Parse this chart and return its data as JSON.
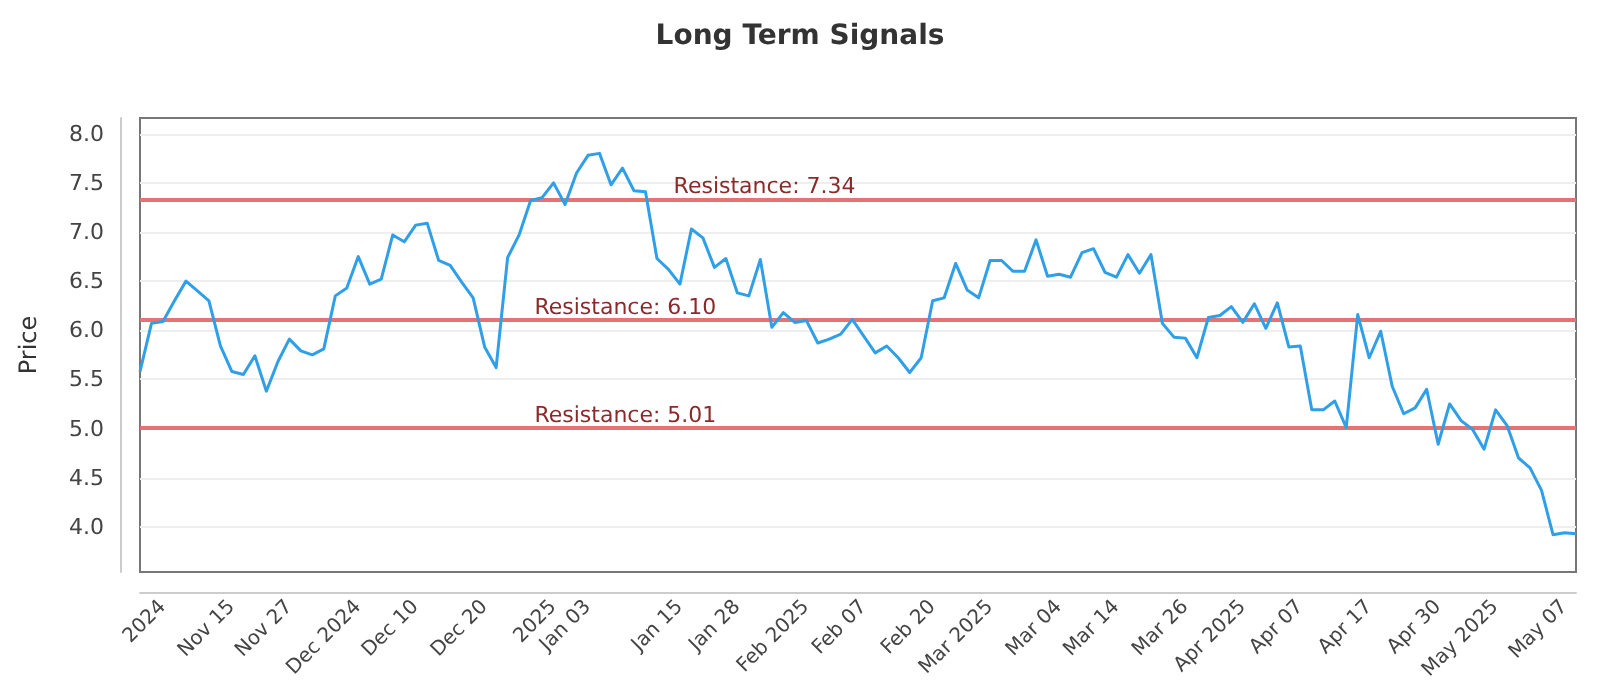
{
  "chart_data": {
    "type": "line",
    "title": "Long Term Signals",
    "ylabel": "Price",
    "categories": [
      null,
      null,
      "2024",
      null,
      null,
      null,
      null,
      null,
      "Nov 15",
      null,
      null,
      null,
      null,
      "Nov 27",
      null,
      null,
      null,
      null,
      null,
      "Dec 2024",
      null,
      null,
      null,
      null,
      "Dec 10",
      null,
      null,
      null,
      null,
      null,
      "Dec 20",
      null,
      null,
      null,
      null,
      null,
      "2025",
      null,
      null,
      "Jan 03",
      null,
      null,
      null,
      null,
      null,
      null,
      null,
      "Jan 15",
      null,
      null,
      null,
      null,
      "Jan 28",
      null,
      null,
      null,
      null,
      null,
      "Feb 2025",
      null,
      null,
      null,
      null,
      "Feb 07",
      null,
      null,
      null,
      null,
      null,
      "Feb 20",
      null,
      null,
      null,
      null,
      "Mar 2025",
      null,
      null,
      null,
      null,
      null,
      "Mar 04",
      null,
      null,
      null,
      null,
      "Mar 14",
      null,
      null,
      null,
      null,
      null,
      "Mar 26",
      null,
      null,
      null,
      null,
      "Apr 2025",
      null,
      null,
      null,
      null,
      "Apr 07",
      null,
      null,
      null,
      null,
      null,
      "Apr 17",
      null,
      null,
      null,
      null,
      null,
      "Apr 30",
      null,
      null,
      null,
      null,
      "May 2025",
      null,
      null,
      null,
      null,
      null,
      "May 07",
      null
    ],
    "series": [
      {
        "color": "#2f9fe8",
        "values": [
          5.58,
          6.07,
          6.09,
          6.3,
          6.5,
          6.4,
          6.3,
          5.84,
          5.58,
          5.55,
          5.74,
          5.38,
          5.68,
          5.91,
          5.79,
          5.75,
          5.81,
          6.35,
          6.43,
          6.75,
          6.47,
          6.52,
          6.97,
          6.9,
          7.07,
          7.09,
          6.71,
          6.66,
          6.49,
          6.33,
          5.83,
          5.62,
          6.74,
          6.97,
          7.32,
          7.35,
          7.5,
          7.28,
          7.6,
          7.78,
          7.8,
          7.48,
          7.65,
          7.42,
          7.41,
          6.73,
          6.62,
          6.47,
          7.03,
          6.94,
          6.64,
          6.73,
          6.38,
          6.35,
          6.72,
          6.03,
          6.18,
          6.08,
          6.1,
          5.87,
          5.91,
          5.96,
          6.11,
          5.94,
          5.77,
          5.84,
          5.72,
          5.57,
          5.72,
          6.3,
          6.33,
          6.68,
          6.41,
          6.33,
          6.71,
          6.71,
          6.6,
          6.6,
          6.92,
          6.55,
          6.57,
          6.54,
          6.79,
          6.83,
          6.59,
          6.54,
          6.77,
          6.58,
          6.77,
          6.07,
          5.93,
          5.92,
          5.72,
          6.13,
          6.15,
          6.24,
          6.08,
          6.27,
          6.02,
          6.28,
          5.83,
          5.84,
          5.19,
          5.19,
          5.28,
          5.01,
          6.16,
          5.72,
          5.99,
          5.43,
          5.15,
          5.21,
          5.4,
          4.84,
          5.25,
          5.08,
          4.99,
          4.79,
          5.19,
          5.03,
          4.7,
          4.6,
          4.37,
          3.92,
          3.94,
          3.93
        ]
      }
    ],
    "ylim": [
      3.54,
      8.16
    ],
    "yticks": [
      {
        "value": 4,
        "label": "4.0"
      },
      {
        "value": 4.5,
        "label": "4.5"
      },
      {
        "value": 5,
        "label": "5.0"
      },
      {
        "value": 5.5,
        "label": "5.5"
      },
      {
        "value": 6,
        "label": "6.0"
      },
      {
        "value": 6.5,
        "label": "6.5"
      },
      {
        "value": 7,
        "label": "7.0"
      },
      {
        "value": 7.5,
        "label": "7.5"
      },
      {
        "value": 8,
        "label": "8.0"
      }
    ],
    "grid": "y",
    "marker": "none",
    "ref_lines": [
      {
        "axis": "y",
        "value": 7.34,
        "label": "Resistance: 7.34",
        "color": "#e57373"
      },
      {
        "axis": "y",
        "value": 6.1,
        "label": "Resistance: 6.10",
        "color": "#e57373"
      },
      {
        "axis": "y",
        "value": 5.01,
        "label": "Resistance: 5.01",
        "color": "#e57373"
      }
    ]
  }
}
